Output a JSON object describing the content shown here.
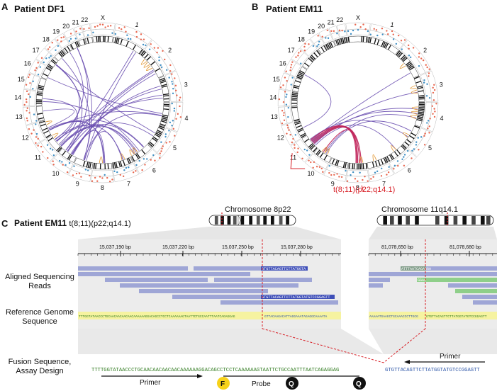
{
  "panel_a": {
    "letter": "A",
    "title": "Patient DF1",
    "chromosome_labels": [
      "X",
      "1",
      "2",
      "3",
      "4",
      "5",
      "6",
      "7",
      "8",
      "9",
      "10",
      "11",
      "12",
      "13",
      "14",
      "15",
      "16",
      "17",
      "18",
      "19",
      "20",
      "21",
      "22"
    ]
  },
  "panel_b": {
    "letter": "B",
    "title": "Patient EM11",
    "chromosome_labels": [
      "X",
      "1",
      "2",
      "3",
      "4",
      "5",
      "6",
      "7",
      "8",
      "9",
      "10",
      "11",
      "12",
      "13",
      "14",
      "15",
      "16",
      "17",
      "18",
      "19",
      "20",
      "21",
      "22"
    ],
    "translocation_label": "t(8;11)(p22;q14.1)"
  },
  "panel_c": {
    "letter": "C",
    "title": "Patient EM11",
    "subtitle": "t(8;11)(p22;q14.1)",
    "chrom_left_label": "Chromosome 8p22",
    "chrom_right_label": "Chromosome 11q14.1",
    "left_ticks": [
      "15,037,190 bp",
      "15,037,220 bp",
      "15,037,250 bp",
      "15,037,280 bp"
    ],
    "right_ticks": [
      "81,078,650 bp",
      "81,078,680 bp"
    ],
    "row_labels": {
      "reads": "Aligned Sequencing Reads",
      "reference": "Reference Genome Sequence",
      "fusion": "Fusion Sequence, Assay Design"
    },
    "read_seq_1": "GTGTTACAGTTCTTATGGTA",
    "read_seq_2": "GTGTTACAGTTCTTATGGTATGTCCGGAGTT",
    "right_read_seq_1": "ATTTAATCAGAGGA",
    "right_read_seq_2": "GGAG",
    "reference_left_a": "TTTGGTATAACCCTGCAACAACAACAACAAAAAAGGACAGCCTCCTCAAAAAAGTAATTCTGCCAATTTAATCAGAGGAG",
    "reference_left_b": "GTTACAAGACATTAGGAAATAGAGGCAAAATA",
    "reference_right_a": "AAAAATGAAGCTGCAAACCCTTGCG",
    "reference_right_b": "GTGTTACAGTTCTTATGGTATGTCCGGAGTT",
    "fusion_left": "TTTTGGTATAACCCTGCAACAACAACAACAAAAAAGGACAGCCTCCTCAAAAAAGTAATTCTGCCAATTTAATCAGAGGAG",
    "fusion_right": "GTGTTACAGTTCTTATGGTATGTCCGGAGTT",
    "primer_left": "Primer",
    "primer_right": "Primer",
    "probe": "Probe",
    "fluor": "F",
    "quencher_1": "Q",
    "quencher_2": "Q"
  },
  "colors": {
    "link_purple": "#6a4fb0",
    "link_orange": "#e39b3a",
    "link_red": "#c0245a",
    "cn_red": "#e8674f",
    "cn_blue": "#3f8fc4",
    "read_blue": "#9fa6d6",
    "read_green": "#8fcf8a",
    "highlight_yellow": "#f6f3a0",
    "fusion_green": "#2f7a1e",
    "fusion_blue": "#2a53a6",
    "annotation_red": "#d81f26"
  }
}
